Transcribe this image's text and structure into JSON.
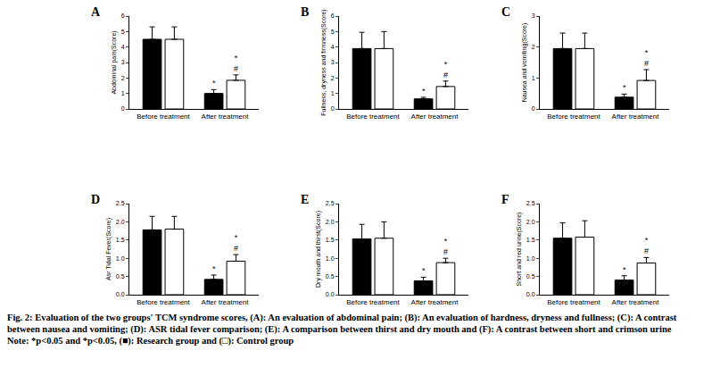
{
  "chart_data": [
    {
      "type": "bar",
      "title": "A",
      "ylabel": "Abdominal pain(Score)",
      "categories": [
        "Before treatment",
        "After treatment"
      ],
      "ylim": [
        0,
        6
      ],
      "yticks": [
        0,
        1,
        2,
        3,
        4,
        5,
        6
      ],
      "series": [
        {
          "color": "#000000",
          "values": [
            4.5,
            1.0
          ],
          "errors": [
            0.8,
            0.25
          ],
          "significance": [
            null,
            [
              "*"
            ]
          ]
        },
        {
          "color": "#ffffff",
          "values": [
            4.5,
            1.85
          ],
          "errors": [
            0.8,
            0.35
          ],
          "significance": [
            null,
            [
              "*",
              "#"
            ]
          ]
        }
      ]
    },
    {
      "type": "bar",
      "title": "B",
      "ylabel": "Fullness, dryness and firmness(Score)",
      "categories": [
        "Before treatment",
        "After treatment"
      ],
      "ylim": [
        0,
        6
      ],
      "yticks": [
        0,
        1,
        2,
        3,
        4,
        5,
        6
      ],
      "series": [
        {
          "color": "#000000",
          "values": [
            3.9,
            0.65
          ],
          "errors": [
            1.05,
            0.1
          ],
          "significance": [
            null,
            [
              "*"
            ]
          ]
        },
        {
          "color": "#ffffff",
          "values": [
            3.9,
            1.45
          ],
          "errors": [
            1.1,
            0.35
          ],
          "significance": [
            null,
            [
              "*",
              "#"
            ]
          ]
        }
      ]
    },
    {
      "type": "bar",
      "title": "C",
      "ylabel": "Nausea and vomiting(Score)",
      "categories": [
        "Before treatment",
        "After treatment"
      ],
      "ylim": [
        0,
        3
      ],
      "yticks": [
        0,
        1,
        2,
        3
      ],
      "series": [
        {
          "color": "#000000",
          "values": [
            1.95,
            0.38
          ],
          "errors": [
            0.5,
            0.1
          ],
          "significance": [
            null,
            [
              "*"
            ]
          ]
        },
        {
          "color": "#ffffff",
          "values": [
            1.95,
            0.92
          ],
          "errors": [
            0.5,
            0.35
          ],
          "significance": [
            null,
            [
              "*",
              "#"
            ]
          ]
        }
      ]
    },
    {
      "type": "bar",
      "title": "D",
      "ylabel": "Asr Tidal Fever(Score)",
      "categories": [
        "Before treatment",
        "After treatment"
      ],
      "ylim": [
        0,
        2.5
      ],
      "yticks": [
        {
          "value": 0,
          "label": "0.0"
        },
        {
          "value": 0.5,
          "label": "0.5"
        },
        {
          "value": 1,
          "label": "1.0"
        },
        {
          "value": 1.5,
          "label": "1.5"
        },
        {
          "value": 2,
          "label": "2.0"
        },
        {
          "value": 2.5,
          "label": "2.5"
        }
      ],
      "series": [
        {
          "color": "#000000",
          "values": [
            1.78,
            0.42
          ],
          "errors": [
            0.37,
            0.12
          ],
          "significance": [
            null,
            [
              "*"
            ]
          ]
        },
        {
          "color": "#ffffff",
          "values": [
            1.8,
            0.92
          ],
          "errors": [
            0.35,
            0.18
          ],
          "significance": [
            null,
            [
              "*",
              "#"
            ]
          ]
        }
      ]
    },
    {
      "type": "bar",
      "title": "E",
      "ylabel": "Dry mouth and thirst(Score)",
      "categories": [
        "Before treatment",
        "After treatment"
      ],
      "ylim": [
        0,
        2.5
      ],
      "yticks": [
        {
          "value": 0,
          "label": "0.0"
        },
        {
          "value": 0.5,
          "label": "0.5"
        },
        {
          "value": 1,
          "label": "1.0"
        },
        {
          "value": 1.5,
          "label": "1.5"
        },
        {
          "value": 2,
          "label": "2.0"
        },
        {
          "value": 2.5,
          "label": "2.5"
        }
      ],
      "series": [
        {
          "color": "#000000",
          "values": [
            1.53,
            0.38
          ],
          "errors": [
            0.4,
            0.1
          ],
          "significance": [
            null,
            [
              "*"
            ]
          ]
        },
        {
          "color": "#ffffff",
          "values": [
            1.55,
            0.88
          ],
          "errors": [
            0.45,
            0.12
          ],
          "significance": [
            null,
            [
              "*",
              "#"
            ]
          ]
        }
      ]
    },
    {
      "type": "bar",
      "title": "F",
      "ylabel": "Short and red urine(Score)",
      "categories": [
        "Before treatment",
        "After treatment"
      ],
      "ylim": [
        0,
        2.5
      ],
      "yticks": [
        {
          "value": 0,
          "label": "0.0"
        },
        {
          "value": 0.5,
          "label": "0.5"
        },
        {
          "value": 1,
          "label": "1.0"
        },
        {
          "value": 1.5,
          "label": "1.5"
        },
        {
          "value": 2,
          "label": "2.0"
        },
        {
          "value": 2.5,
          "label": "2.5"
        }
      ],
      "series": [
        {
          "color": "#000000",
          "values": [
            1.55,
            0.4
          ],
          "errors": [
            0.42,
            0.12
          ],
          "significance": [
            null,
            [
              "*"
            ]
          ]
        },
        {
          "color": "#ffffff",
          "values": [
            1.58,
            0.87
          ],
          "errors": [
            0.45,
            0.15
          ],
          "significance": [
            null,
            [
              "*",
              "#"
            ]
          ]
        }
      ]
    }
  ],
  "caption": {
    "title": "Fig. 2: Evaluation of the two groups' TCM syndrome scores, (A): An evaluation of abdominal pain; (B): An evaluation of hardness, dryness and fullness; (C): A contrast between nausea and vomiting; (D): ASR tidal fever comparison; (E): A comparison between thirst and dry mouth and (F): A contrast between short and crimson urine",
    "note": "Note: *p<0.05 and *p<0.05, (■): Research group and (□): Control group"
  }
}
